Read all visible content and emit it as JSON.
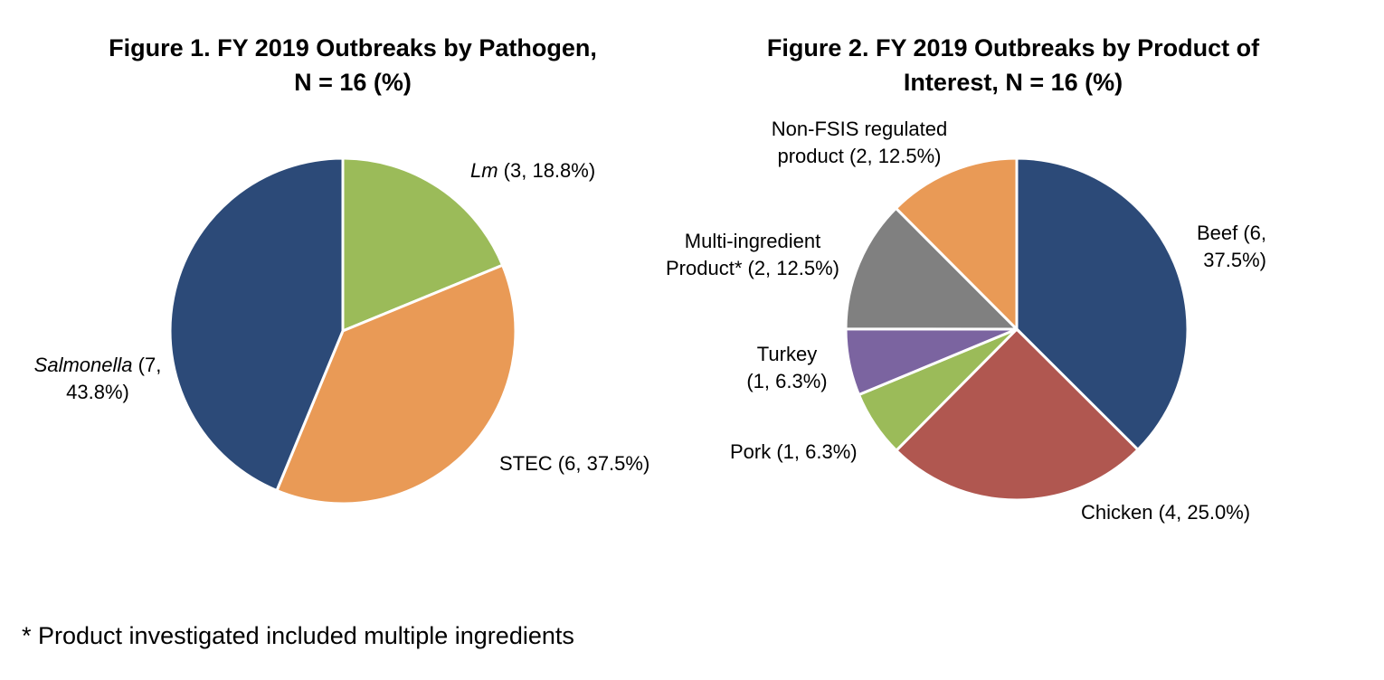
{
  "chart_data": [
    {
      "type": "pie",
      "title_line1": "Figure 1. FY 2019 Outbreaks by Pathogen,",
      "title_line2": "N = 16 (%)",
      "slices": [
        {
          "name": "Lm",
          "count": 3,
          "value": 18.8,
          "label_rest": " (3, 18.8%)",
          "color": "#9BBB59"
        },
        {
          "name": "STEC",
          "count": 6,
          "value": 37.5,
          "label_rest": " (6, 37.5%)",
          "color": "#E99A56"
        },
        {
          "name": "Salmonella",
          "count": 7,
          "value": 43.8,
          "label_rest": " (7,",
          "label_line2": "43.8%)",
          "color": "#2C4A78"
        }
      ]
    },
    {
      "type": "pie",
      "title_line1": "Figure 2. FY 2019 Outbreaks by Product of",
      "title_line2": "Interest, N = 16 (%)",
      "slices": [
        {
          "name": "Beef",
          "count": 6,
          "value": 37.5,
          "label_line1": "Beef (6,",
          "label_line2": "37.5%)",
          "color": "#2C4A78"
        },
        {
          "name": "Chicken",
          "count": 4,
          "value": 25.0,
          "label_line1": "Chicken (4, 25.0%)",
          "color": "#B05750"
        },
        {
          "name": "Pork",
          "count": 1,
          "value": 6.3,
          "label_line1": "Pork (1, 6.3%)",
          "color": "#9BBB59"
        },
        {
          "name": "Turkey",
          "count": 1,
          "value": 6.3,
          "label_line1": "Turkey",
          "label_line2": "(1, 6.3%)",
          "color": "#7B64A0"
        },
        {
          "name": "Multi-ingredient Product*",
          "count": 2,
          "value": 12.5,
          "label_line1": "Multi-ingredient",
          "label_line2": "Product* (2, 12.5%)",
          "color": "#808080"
        },
        {
          "name": "Non-FSIS regulated product",
          "count": 2,
          "value": 12.5,
          "label_line1": "Non-FSIS regulated",
          "label_line2": "product (2, 12.5%)",
          "color": "#E99A56"
        }
      ]
    }
  ],
  "footnote": "* Product investigated included multiple ingredients"
}
